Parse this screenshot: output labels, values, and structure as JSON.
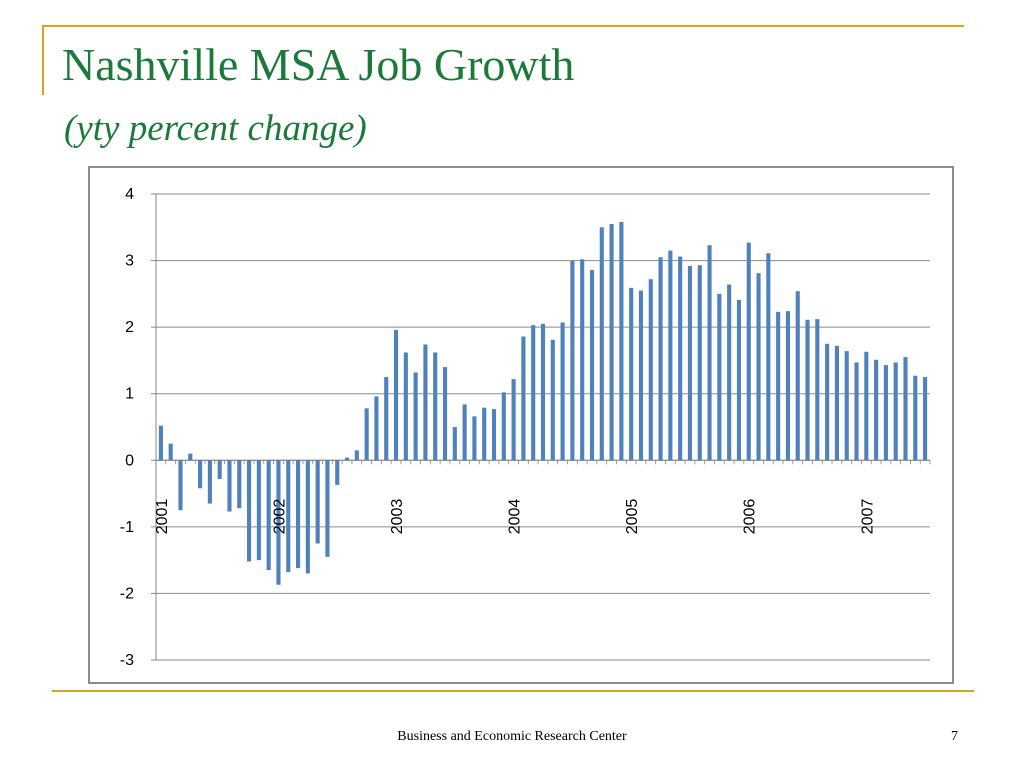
{
  "slide": {
    "title": "Nashville MSA Job Growth",
    "subtitle": "(yty percent change)",
    "footer": "Business and Economic Research Center",
    "page_number": "7",
    "accent_color": "#d9a521",
    "title_color": "#1b7a3a"
  },
  "chart_data": {
    "type": "bar",
    "title": "",
    "xlabel": "",
    "ylabel": "",
    "ylim": [
      -3,
      4
    ],
    "yticks": [
      4,
      3,
      2,
      1,
      0,
      -1,
      -2,
      -3
    ],
    "grid": true,
    "legend": "none",
    "bar_color": "#4f81bd",
    "year_labels": [
      {
        "label": "2001",
        "index": 0
      },
      {
        "label": "2002",
        "index": 12
      },
      {
        "label": "2003",
        "index": 24
      },
      {
        "label": "2004",
        "index": 36
      },
      {
        "label": "2005",
        "index": 48
      },
      {
        "label": "2006",
        "index": 60
      },
      {
        "label": "2007",
        "index": 72
      }
    ],
    "values": [
      0.52,
      0.25,
      -0.75,
      0.1,
      -0.42,
      -0.65,
      -0.28,
      -0.77,
      -0.72,
      -1.52,
      -1.5,
      -1.65,
      -1.87,
      -1.68,
      -1.62,
      -1.7,
      -1.25,
      -1.45,
      -0.37,
      0.04,
      0.15,
      0.78,
      0.96,
      1.25,
      1.96,
      1.62,
      1.32,
      1.74,
      1.62,
      1.4,
      0.5,
      0.84,
      0.66,
      0.79,
      0.77,
      1.02,
      1.22,
      1.86,
      2.03,
      2.05,
      1.81,
      2.07,
      3.0,
      3.02,
      2.86,
      3.5,
      3.55,
      3.58,
      2.59,
      2.55,
      2.72,
      3.05,
      3.15,
      3.06,
      2.92,
      2.93,
      3.23,
      2.5,
      2.64,
      2.41,
      3.27,
      2.81,
      3.11,
      2.23,
      2.24,
      2.54,
      2.11,
      2.12,
      1.75,
      1.72,
      1.64,
      1.47,
      1.63,
      1.51,
      1.43,
      1.47,
      1.55,
      1.27,
      1.25
    ]
  }
}
